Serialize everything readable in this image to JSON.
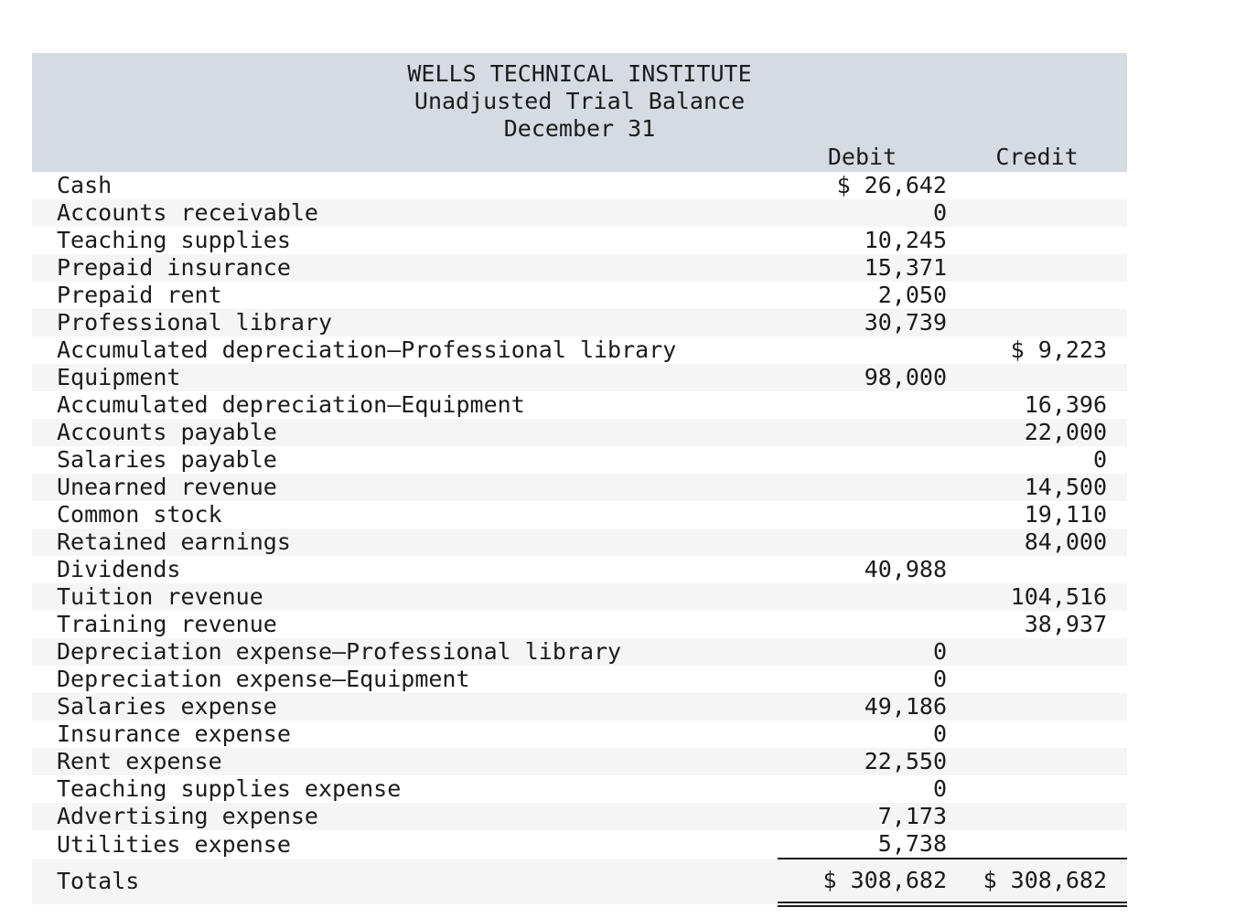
{
  "header": {
    "title": "WELLS TECHNICAL INSTITUTE",
    "subtitle": "Unadjusted Trial Balance",
    "date": "December 31"
  },
  "columns": {
    "debit": "Debit",
    "credit": "Credit"
  },
  "rows": [
    {
      "account": "Cash",
      "debit": "$ 26,642",
      "credit": ""
    },
    {
      "account": "Accounts receivable",
      "debit": "0",
      "credit": ""
    },
    {
      "account": "Teaching supplies",
      "debit": "10,245",
      "credit": ""
    },
    {
      "account": "Prepaid insurance",
      "debit": "15,371",
      "credit": ""
    },
    {
      "account": "Prepaid rent",
      "debit": "2,050",
      "credit": ""
    },
    {
      "account": "Professional library",
      "debit": "30,739",
      "credit": ""
    },
    {
      "account": "Accumulated depreciation—Professional library",
      "debit": "",
      "credit": "$ 9,223"
    },
    {
      "account": "Equipment",
      "debit": "98,000",
      "credit": ""
    },
    {
      "account": "Accumulated depreciation—Equipment",
      "debit": "",
      "credit": "16,396"
    },
    {
      "account": "Accounts payable",
      "debit": "",
      "credit": "22,000"
    },
    {
      "account": "Salaries payable",
      "debit": "",
      "credit": "0"
    },
    {
      "account": "Unearned revenue",
      "debit": "",
      "credit": "14,500"
    },
    {
      "account": "Common stock",
      "debit": "",
      "credit": "19,110"
    },
    {
      "account": "Retained earnings",
      "debit": "",
      "credit": "84,000"
    },
    {
      "account": "Dividends",
      "debit": "40,988",
      "credit": ""
    },
    {
      "account": "Tuition revenue",
      "debit": "",
      "credit": "104,516"
    },
    {
      "account": "Training revenue",
      "debit": "",
      "credit": "38,937"
    },
    {
      "account": "Depreciation expense—Professional library",
      "debit": "0",
      "credit": ""
    },
    {
      "account": "Depreciation expense—Equipment",
      "debit": "0",
      "credit": ""
    },
    {
      "account": "Salaries expense",
      "debit": "49,186",
      "credit": ""
    },
    {
      "account": "Insurance expense",
      "debit": "0",
      "credit": ""
    },
    {
      "account": "Rent expense",
      "debit": "22,550",
      "credit": ""
    },
    {
      "account": "Teaching supplies expense",
      "debit": "0",
      "credit": ""
    },
    {
      "account": "Advertising expense",
      "debit": "7,173",
      "credit": ""
    },
    {
      "account": "Utilities expense",
      "debit": "5,738",
      "credit": ""
    }
  ],
  "totals": {
    "label": "Totals",
    "debit": "$ 308,682",
    "credit": "$ 308,682"
  },
  "colors": {
    "header_bg": "#d5dae3",
    "stripe_bg": "#f5f5f5",
    "text": "#1b1b1b"
  }
}
